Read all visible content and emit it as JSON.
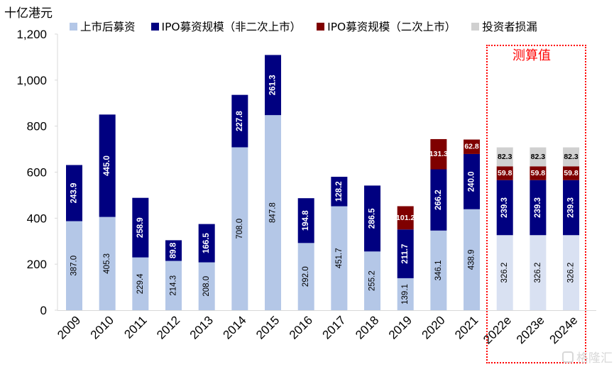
{
  "chart_data": {
    "type": "bar",
    "stacked": true,
    "title": "",
    "ylabel": "十亿港元",
    "xlabel": "",
    "ylim": [
      0,
      1200
    ],
    "yticks": [
      0,
      200,
      400,
      600,
      800,
      1000,
      1200
    ],
    "ytick_labels": [
      "0",
      "200",
      "400",
      "600",
      "800",
      "1,000",
      "1,200"
    ],
    "categories": [
      "2009",
      "2010",
      "2011",
      "2012",
      "2013",
      "2014",
      "2015",
      "2016",
      "2017",
      "2018",
      "2019",
      "2020",
      "2021",
      "2022e",
      "2023e",
      "2024e"
    ],
    "series": [
      {
        "name": "上市后募资",
        "color": "#B4C7E7",
        "forecast_color": "#D9E1F2",
        "label_color": "#000000",
        "values": [
          387.0,
          405.3,
          229.4,
          214.3,
          208.0,
          708.0,
          847.8,
          292.0,
          451.7,
          255.2,
          139.1,
          346.1,
          438.9,
          326.2,
          326.2,
          326.2
        ],
        "labels": [
          "387.0",
          "405.3",
          "229.4",
          "214.3",
          "208.0",
          "708.0",
          "847.8",
          "292.0",
          "451.7",
          "255.2",
          "139.1",
          "346.1",
          "438.9",
          "326.2",
          "326.2",
          "326.2"
        ]
      },
      {
        "name": "IPO募资规模（非二次上市）",
        "color": "#000080",
        "label_color": "#FFFFFF",
        "values": [
          243.9,
          445.0,
          258.9,
          89.8,
          166.5,
          227.8,
          261.3,
          194.8,
          128.2,
          286.5,
          211.7,
          266.2,
          240.0,
          239.3,
          239.3,
          239.3
        ],
        "labels": [
          "243.9",
          "445.0",
          "258.9",
          "89.8",
          "166.5",
          "227.8",
          "261.3",
          "194.8",
          "128.2",
          "286.5",
          "211.7",
          "266.2",
          "240.0",
          "239.3",
          "239.3",
          "239.3"
        ]
      },
      {
        "name": "IPO募资规模（二次上市）",
        "color": "#7F0000",
        "label_color": "#FFFFFF",
        "values": [
          0,
          0,
          0,
          0,
          0,
          0,
          0,
          0,
          0,
          0,
          101.2,
          131.3,
          62.8,
          59.8,
          59.8,
          59.8
        ],
        "labels": [
          "",
          "",
          "",
          "",
          "",
          "",
          "",
          "",
          "",
          "",
          "101.2",
          "131.3",
          "62.8",
          "59.8",
          "59.8",
          "59.8"
        ]
      },
      {
        "name": "投资者损漏",
        "color": "#D0D0D0",
        "label_color": "#000000",
        "values": [
          0,
          0,
          0,
          0,
          0,
          0,
          0,
          0,
          0,
          0,
          0,
          0,
          0,
          82.3,
          82.3,
          82.3
        ],
        "labels": [
          "",
          "",
          "",
          "",
          "",
          "",
          "",
          "",
          "",
          "",
          "",
          "",
          "",
          "82.3",
          "82.3",
          "82.3"
        ]
      }
    ],
    "forecast_start_index": 13,
    "annotation": "测算值",
    "legend_position": "top",
    "grid": false
  },
  "watermark": "格隆汇"
}
